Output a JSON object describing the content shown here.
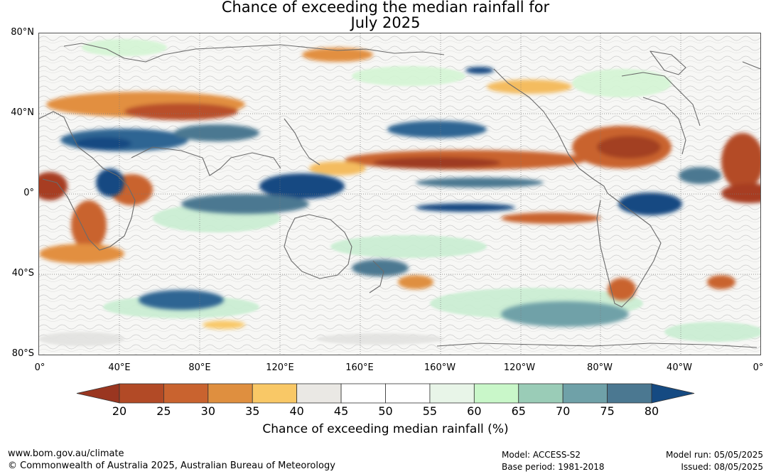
{
  "title": {
    "line1": "Chance of exceeding the median rainfall for",
    "line2": "July 2025"
  },
  "map": {
    "lat_labels": [
      "80°N",
      "40°N",
      "0°",
      "40°S",
      "80°S"
    ],
    "lon_labels": [
      "0°",
      "40°E",
      "80°E",
      "120°E",
      "160°E",
      "160°W",
      "120°W",
      "80°W",
      "40°W",
      "0°"
    ]
  },
  "colorbar": {
    "ticks": [
      "20",
      "25",
      "30",
      "35",
      "40",
      "45",
      "50",
      "55",
      "60",
      "65",
      "70",
      "75",
      "80"
    ],
    "colors": [
      "#9a3620",
      "#b24a26",
      "#c9632f",
      "#df8f3f",
      "#f9c866",
      "#eae8e4",
      "#ffffff",
      "#ffffff",
      "#e8f5e8",
      "#c9f7c9",
      "#9accb7",
      "#6fa1a8",
      "#4b7891",
      "#154a82"
    ],
    "title": "Chance of exceeding median rainfall (%)"
  },
  "footer": {
    "website": "www.bom.gov.au/climate",
    "copyright": "© Commonwealth of Australia 2025, Australian Bureau of Meteorology",
    "model": "Model: ACCESS-S2",
    "base_period": "Base period: 1981-2018",
    "model_run": "Model run: 05/05/2025",
    "issued": "Issued: 08/05/2025"
  }
}
